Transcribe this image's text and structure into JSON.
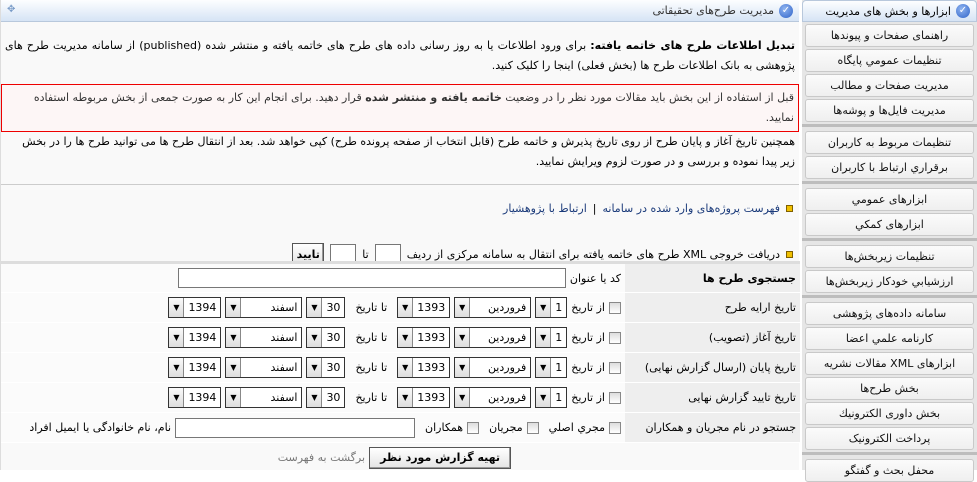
{
  "sidebar": {
    "title": "ابزارها و بخش های مدیریت",
    "groups": [
      [
        "راهنمای صفحات و پیوندها",
        "تنظیمات عمومي پایگاه",
        "مدیریت صفحات و مطالب",
        "مدیریت فایل‌ها و پوشه‌ها"
      ],
      [
        "تنظیمات مربوط به کاربران",
        "برقراري ارتباط با کاربران"
      ],
      [
        "ابزارهای عمومي",
        "ابزارهای کمکي"
      ],
      [
        "تنظیمات زیربخش‌ها",
        "ارزشیابي خودکار زیربخش‌ها"
      ],
      [
        "سامانه داده‌های پژوهشی",
        "کارنامه علمي اعضا",
        "ابزارهای XML مقالات نشریه",
        "بخش طرح‌ها",
        "بخش داوری الکترونیك",
        "پرداخت الکترونیک"
      ],
      [
        "محفل بحث و گفتگو"
      ]
    ]
  },
  "main": {
    "title": "مدیریت طرح‌های تحقیقاتی",
    "intro_bold": "تبدیل اطلاعات طرح های خاتمه یافته:",
    "intro_text": " برای ورود اطلاعات یا به روز رسانی داده های طرح های خاتمه یافته و منتشر شده (published) از سامانه مدیریت طرح های پژوهشی به بانک اطلاعات طرح ها (بخش فعلی) اینجا را کلیک کنید.",
    "warn_1": "قبل از استفاده از این بخش باید مقالات مورد نظر را در وضعیت ",
    "warn_bold": "خاتمه یافته و منتشر شده",
    "warn_2": " قرار دهید. برای انجام این کار به صورت جمعی از بخش مربوطه استفاده نمایید.",
    "note": "همچنین تاریخ آغاز و پایان طرح از روی تاریخ پذیرش و خاتمه طرح (قابل انتخاب از صفحه پرونده طرح) کپی خواهد شد. بعد از انتقال طرح ها می توانید طرح ها را در بخش زیر پیدا نموده و بررسی و در صورت لزوم ویرایش نمایید.",
    "link_list": "فهرست پروژه‌های وارد شده در سامانه",
    "link_sep": "|",
    "link_contact": "ارتباط با پژوهشیار",
    "xml_text": "دریافت خروجی XML طرح های خاتمه یافته برای انتقال به سامانه مرکزی از ردیف",
    "xml_to": "تا",
    "xml_from_value": "",
    "xml_to_value": "",
    "xml_button": "تایید"
  },
  "search": {
    "title": "جستجوی طرح ها",
    "code_label": "کد یا عنوان",
    "code_value": "",
    "from": "از تاریخ",
    "to": "تا تاریخ",
    "date_rows": [
      {
        "label": "تاریخ ارایه طرح",
        "checked": false
      },
      {
        "label": "تاریخ آغاز (تصویب)",
        "checked": false
      },
      {
        "label": "تاریخ پایان (ارسال گزارش نهایی)",
        "checked": false
      },
      {
        "label": "تاریخ تایید گزارش نهایی",
        "checked": false
      }
    ],
    "from_date": {
      "day": "1",
      "month": "فروردین",
      "year": "1393"
    },
    "to_date": {
      "day": "30",
      "month": "اسفند",
      "year": "1394"
    },
    "people_label": "جستجو در نام مجریان و همکاران",
    "people_options": [
      {
        "label": "مجري اصلي",
        "checked": false
      },
      {
        "label": "مجریان",
        "checked": false
      },
      {
        "label": "همکاران",
        "checked": false
      }
    ],
    "people_value": "",
    "people_hint": "نام، نام خانوادگی یا ایمیل افراد",
    "submit": "تهیه گزارش مورد نظر",
    "back": "برگشت به فهرست"
  },
  "colors": {
    "accent": "#2f63c8",
    "warning_border": "#ee0000",
    "bullet": "#f0c000"
  }
}
